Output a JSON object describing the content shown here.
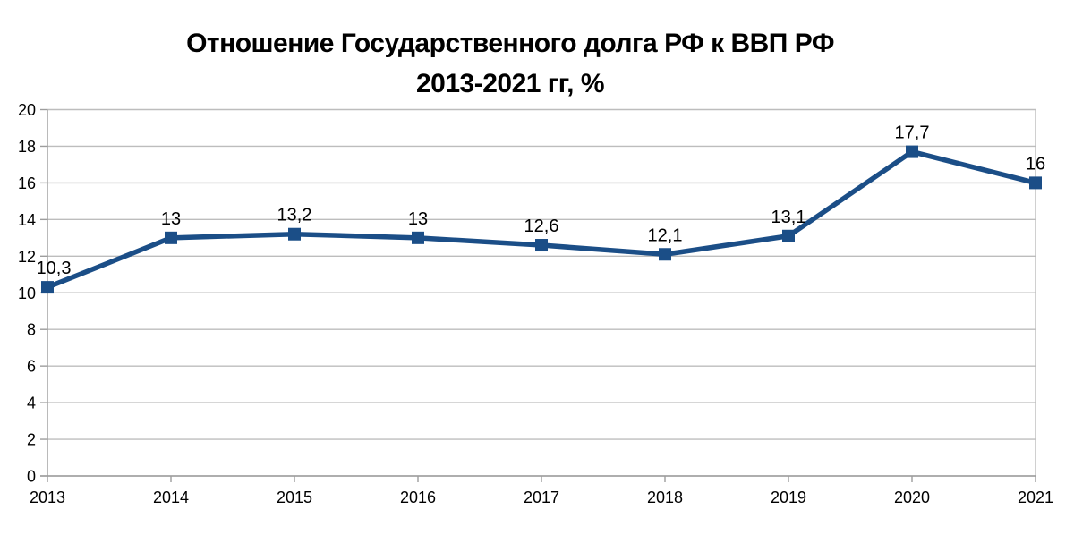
{
  "title": {
    "line1": "Отношение Государственного долга РФ к ВВП РФ",
    "line2": "2013-2021 гг, %"
  },
  "chart_data": {
    "type": "line",
    "title": "Отношение Государственного долга РФ к ВВП РФ 2013-2021 гг, %",
    "categories": [
      "2013",
      "2014",
      "2015",
      "2016",
      "2017",
      "2018",
      "2019",
      "2020",
      "2021"
    ],
    "values": [
      10.3,
      13,
      13.2,
      13,
      12.6,
      12.1,
      13.1,
      17.7,
      16
    ],
    "point_labels": [
      "10,3",
      "13",
      "13,2",
      "13",
      "12,6",
      "12,1",
      "13,1",
      "17,7",
      "16"
    ],
    "xlabel": "",
    "ylabel": "",
    "ylim": [
      0,
      20
    ],
    "ytick_step": 2,
    "ytick_labels": [
      "0",
      "2",
      "4",
      "6",
      "8",
      "10",
      "12",
      "14",
      "16",
      "18",
      "20"
    ],
    "grid": "horizontal",
    "legend": "none",
    "marker": "square",
    "colors": {
      "line": "#1b4e87",
      "marker": "#1b4e87",
      "gridline": "#bdbdbd",
      "axis": "#9d9d9d",
      "text": "#000000"
    }
  }
}
